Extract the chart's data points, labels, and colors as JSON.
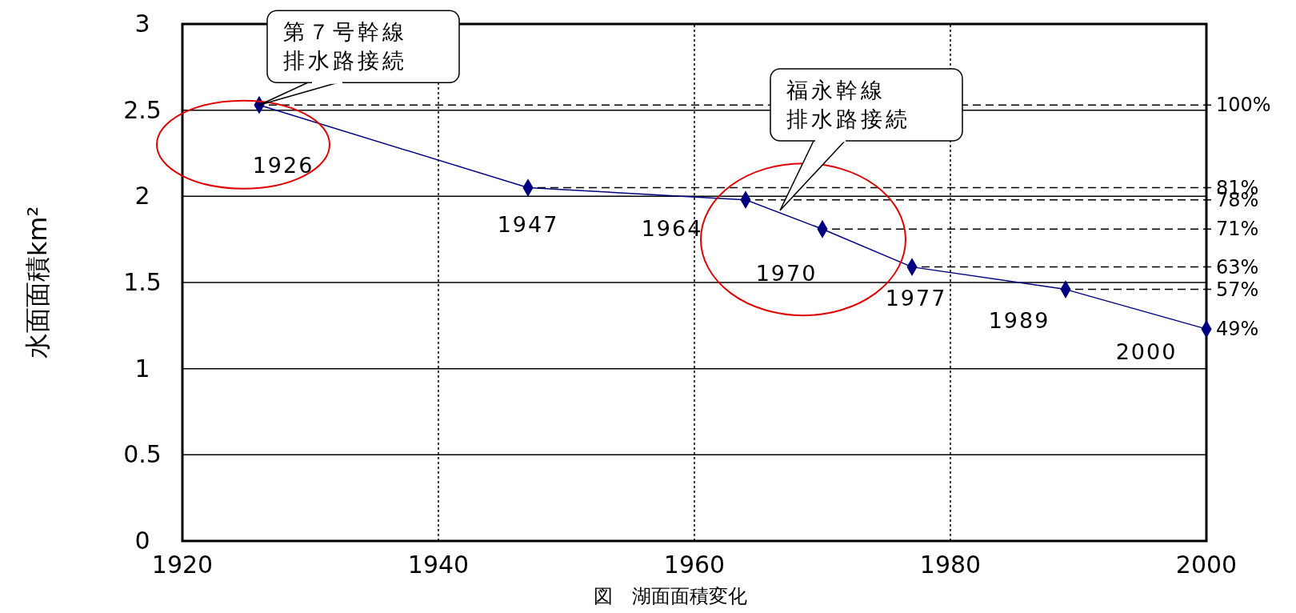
{
  "chart_data": {
    "type": "line",
    "ylabel": "水面面積km²",
    "x": [
      1926,
      1947,
      1964,
      1970,
      1977,
      1989,
      2000
    ],
    "series": [
      {
        "color": "#000080",
        "values": [
          2.53,
          2.05,
          1.98,
          1.81,
          1.59,
          1.46,
          1.23
        ]
      }
    ],
    "marker": "diamond",
    "line_style": "solid",
    "xlim": [
      1920,
      2000
    ],
    "xticks": [
      1920,
      1940,
      1960,
      1980,
      2000
    ],
    "ylim": [
      0,
      3
    ],
    "yticks": [
      0,
      0.5,
      1,
      1.5,
      2,
      2.5,
      3
    ],
    "grid": true,
    "ref_lines": [
      {
        "axis": "y",
        "value": 2.53,
        "line_style": "dashed"
      },
      {
        "axis": "y",
        "value": 2.05,
        "line_style": "dashed"
      },
      {
        "axis": "y",
        "value": 1.98,
        "line_style": "dashed"
      },
      {
        "axis": "y",
        "value": 1.81,
        "line_style": "dashed"
      },
      {
        "axis": "y",
        "value": 1.59,
        "line_style": "dashed"
      },
      {
        "axis": "y",
        "value": 1.46,
        "line_style": "dashed"
      }
    ],
    "annotations": [
      {
        "text": "1926",
        "x": 1926,
        "y": 2.53
      },
      {
        "text": "1947",
        "x": 1947,
        "y": 2.05
      },
      {
        "text": "1964",
        "x": 1964,
        "y": 1.98
      },
      {
        "text": "1970",
        "x": 1970,
        "y": 1.81
      },
      {
        "text": "1977",
        "x": 1977,
        "y": 1.59
      },
      {
        "text": "1989",
        "x": 1989,
        "y": 1.46
      },
      {
        "text": "2000",
        "x": 2000,
        "y": 1.23
      },
      {
        "text": "第７号幹線排水路接続",
        "x": 1926,
        "y": 2.53
      },
      "福永幹線排水路接続",
      {
        "text": "100%",
        "x": 2000,
        "y": 2.53
      },
      {
        "text": "81%",
        "x": 2000,
        "y": 2.05
      },
      {
        "text": "78%",
        "x": 2000,
        "y": 1.98
      },
      {
        "text": "71%",
        "x": 2000,
        "y": 1.81
      },
      {
        "text": "63%",
        "x": 2000,
        "y": 1.59
      },
      {
        "text": "57%",
        "x": 2000,
        "y": 1.46
      },
      {
        "text": "49%",
        "x": 2000,
        "y": 1.23
      },
      "図　湖面面積変化"
    ]
  }
}
